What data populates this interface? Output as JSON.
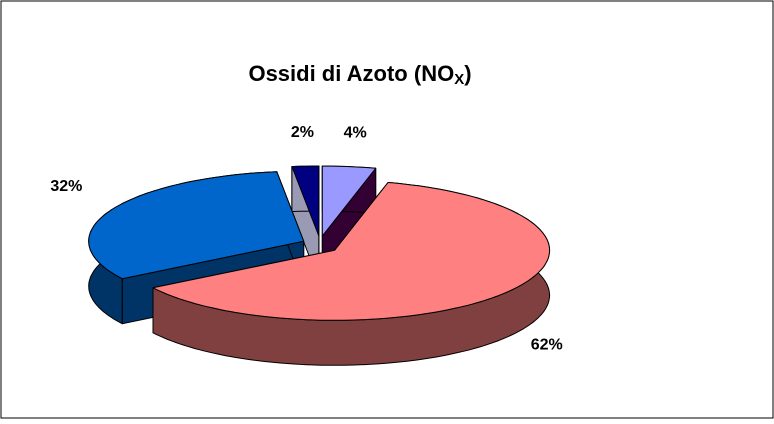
{
  "chart_data": {
    "type": "pie3d",
    "title": [
      "Ossidi di Azoto (NO",
      "X",
      ")"
    ],
    "values": [
      4,
      62,
      32,
      2
    ],
    "value_labels": [
      "4%",
      "62%",
      "32%",
      "2%"
    ],
    "colors": [
      "#9999FF",
      "#FF8080",
      "#0066CC",
      "#000080"
    ],
    "side_colors": [
      "#330033",
      "#804040",
      "#003366",
      "#9a9ab4"
    ]
  }
}
